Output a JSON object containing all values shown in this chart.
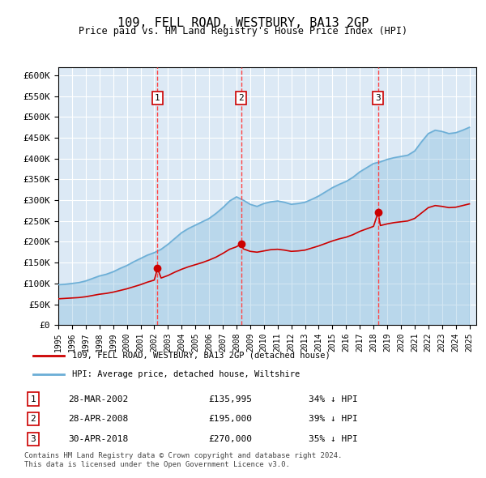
{
  "title": "109, FELL ROAD, WESTBURY, BA13 2GP",
  "subtitle": "Price paid vs. HM Land Registry's House Price Index (HPI)",
  "ylabel": "",
  "background_color": "#dce9f5",
  "plot_bg_color": "#dce9f5",
  "transactions": [
    {
      "num": 1,
      "date": "28-MAR-2002",
      "price": 135995,
      "pct": "34%",
      "year_x": 2002.24
    },
    {
      "num": 2,
      "date": "28-APR-2008",
      "price": 195000,
      "pct": "39%",
      "year_x": 2008.33
    },
    {
      "num": 3,
      "date": "30-APR-2018",
      "price": 270000,
      "pct": "35%",
      "year_x": 2018.33
    }
  ],
  "legend_line1": "109, FELL ROAD, WESTBURY, BA13 2GP (detached house)",
  "legend_line2": "HPI: Average price, detached house, Wiltshire",
  "footer1": "Contains HM Land Registry data © Crown copyright and database right 2024.",
  "footer2": "This data is licensed under the Open Government Licence v3.0.",
  "hpi_years": [
    1995,
    1995.5,
    1996,
    1996.5,
    1997,
    1997.5,
    1998,
    1998.5,
    1999,
    1999.5,
    2000,
    2000.5,
    2001,
    2001.5,
    2002,
    2002.5,
    2003,
    2003.5,
    2004,
    2004.5,
    2005,
    2005.5,
    2006,
    2006.5,
    2007,
    2007.5,
    2008,
    2008.5,
    2009,
    2009.5,
    2010,
    2010.5,
    2011,
    2011.5,
    2012,
    2012.5,
    2013,
    2013.5,
    2014,
    2014.5,
    2015,
    2015.5,
    2016,
    2016.5,
    2017,
    2017.5,
    2018,
    2018.5,
    2019,
    2019.5,
    2020,
    2020.5,
    2021,
    2021.5,
    2022,
    2022.5,
    2023,
    2023.5,
    2024,
    2024.5,
    2025
  ],
  "hpi_values": [
    97000,
    98000,
    100000,
    102000,
    106000,
    112000,
    118000,
    122000,
    128000,
    136000,
    143000,
    152000,
    160000,
    168000,
    174000,
    182000,
    194000,
    208000,
    222000,
    232000,
    240000,
    248000,
    256000,
    268000,
    282000,
    298000,
    308000,
    300000,
    290000,
    285000,
    292000,
    296000,
    298000,
    295000,
    290000,
    292000,
    295000,
    302000,
    310000,
    320000,
    330000,
    338000,
    345000,
    355000,
    368000,
    378000,
    388000,
    392000,
    398000,
    402000,
    405000,
    408000,
    418000,
    440000,
    460000,
    468000,
    465000,
    460000,
    462000,
    468000,
    475000
  ],
  "price_years": [
    1995,
    1995.5,
    1996,
    1996.5,
    1997,
    1997.5,
    1998,
    1998.5,
    1999,
    1999.5,
    2000,
    2000.5,
    2001,
    2001.5,
    2002,
    2002.24,
    2002.5,
    2003,
    2003.5,
    2004,
    2004.5,
    2005,
    2005.5,
    2006,
    2006.5,
    2007,
    2007.5,
    2008,
    2008.33,
    2008.5,
    2009,
    2009.5,
    2010,
    2010.5,
    2011,
    2011.5,
    2012,
    2012.5,
    2013,
    2013.5,
    2014,
    2014.5,
    2015,
    2015.5,
    2016,
    2016.5,
    2017,
    2017.5,
    2018,
    2018.33,
    2018.5,
    2019,
    2019.5,
    2020,
    2020.5,
    2021,
    2021.5,
    2022,
    2022.5,
    2023,
    2023.5,
    2024,
    2024.5,
    2025
  ],
  "price_values": [
    63000,
    64000,
    65000,
    66000,
    68000,
    71000,
    74000,
    76000,
    79000,
    83000,
    87000,
    92000,
    97000,
    103000,
    108000,
    135995,
    113000,
    119000,
    127000,
    134000,
    140000,
    145000,
    150000,
    156000,
    163000,
    172000,
    182000,
    188000,
    195000,
    183000,
    177000,
    175000,
    178000,
    181000,
    182000,
    180000,
    177000,
    178000,
    180000,
    185000,
    190000,
    196000,
    202000,
    207000,
    211000,
    217000,
    225000,
    231000,
    237000,
    270000,
    239000,
    243000,
    246000,
    248000,
    250000,
    256000,
    269000,
    282000,
    287000,
    285000,
    282000,
    283000,
    287000,
    291000
  ],
  "xlim": [
    1995,
    2025.5
  ],
  "ylim": [
    0,
    620000
  ],
  "yticks": [
    0,
    50000,
    100000,
    150000,
    200000,
    250000,
    300000,
    350000,
    400000,
    450000,
    500000,
    550000,
    600000
  ],
  "ytick_labels": [
    "£0",
    "£50K",
    "£100K",
    "£150K",
    "£200K",
    "£250K",
    "£300K",
    "£350K",
    "£400K",
    "£450K",
    "£500K",
    "£550K",
    "£600K"
  ],
  "xticks": [
    1995,
    1996,
    1997,
    1998,
    1999,
    2000,
    2001,
    2002,
    2003,
    2004,
    2005,
    2006,
    2007,
    2008,
    2009,
    2010,
    2011,
    2012,
    2013,
    2014,
    2015,
    2016,
    2017,
    2018,
    2019,
    2020,
    2021,
    2022,
    2023,
    2024,
    2025
  ],
  "hpi_color": "#6baed6",
  "price_color": "#cc0000",
  "vline_color": "#ff4444",
  "box_color": "#cc0000"
}
